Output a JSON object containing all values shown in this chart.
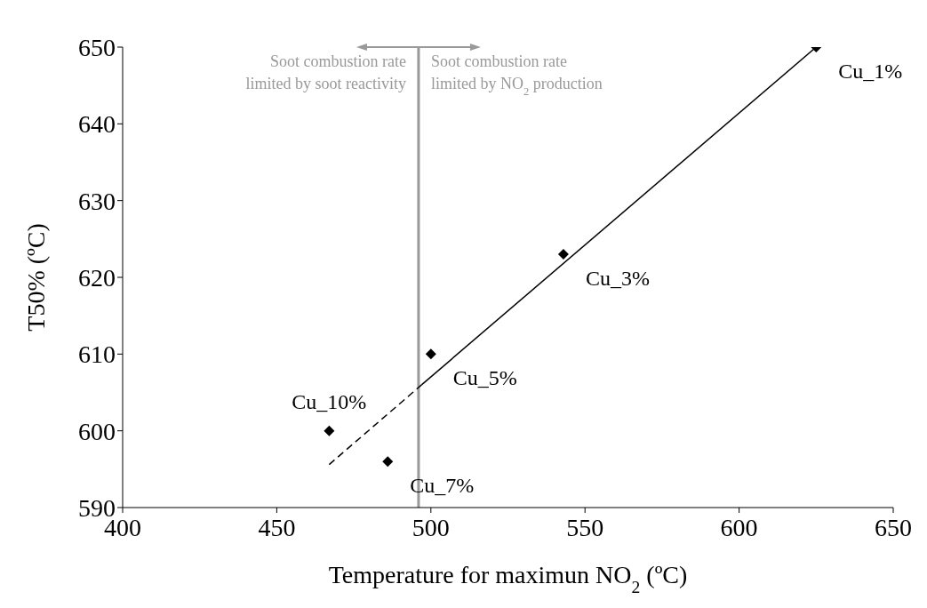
{
  "chart_data": {
    "type": "scatter",
    "xlabel": "Temperature for maximun NO$_{2}$ (ºC)",
    "ylabel": "T50% (ºC)",
    "x": [
      625,
      543,
      500,
      486,
      467
    ],
    "series": [
      {
        "color": "#000000",
        "values": [
          650,
          623,
          610,
          596,
          600
        ],
        "marker": "diamond"
      },
      {
        "type": "line",
        "color": "#000000",
        "x": [
          467,
          497
        ],
        "values": [
          595.6,
          606
        ],
        "line_style": "dashed",
        "marker": "none"
      },
      {
        "type": "line",
        "color": "#000000",
        "x": [
          497,
          625
        ],
        "values": [
          606,
          650
        ],
        "line_style": "solid",
        "marker": "none"
      }
    ],
    "xlim": [
      400,
      650
    ],
    "xticks": [
      400,
      450,
      500,
      550,
      600,
      650
    ],
    "ylim": [
      590,
      650
    ],
    "yticks": [
      590,
      600,
      610,
      620,
      630,
      640,
      650
    ],
    "ref_lines": [
      {
        "axis": "x",
        "value": 496,
        "color": "#999999"
      }
    ],
    "annotations": [
      "Soot combustion rate\nlimited by  soot reactivity",
      "Soot combustion rate\nlimited by NO$_{2}$ production",
      {
        "text": "Cu_1%",
        "x": 625,
        "y": 650
      },
      {
        "text": "Cu_3%",
        "x": 543,
        "y": 623
      },
      {
        "text": "Cu_5%",
        "x": 500,
        "y": 610
      },
      {
        "text": "Cu_7%",
        "x": 486,
        "y": 596
      },
      {
        "text": "Cu_10%",
        "x": 467,
        "y": 600
      }
    ]
  }
}
